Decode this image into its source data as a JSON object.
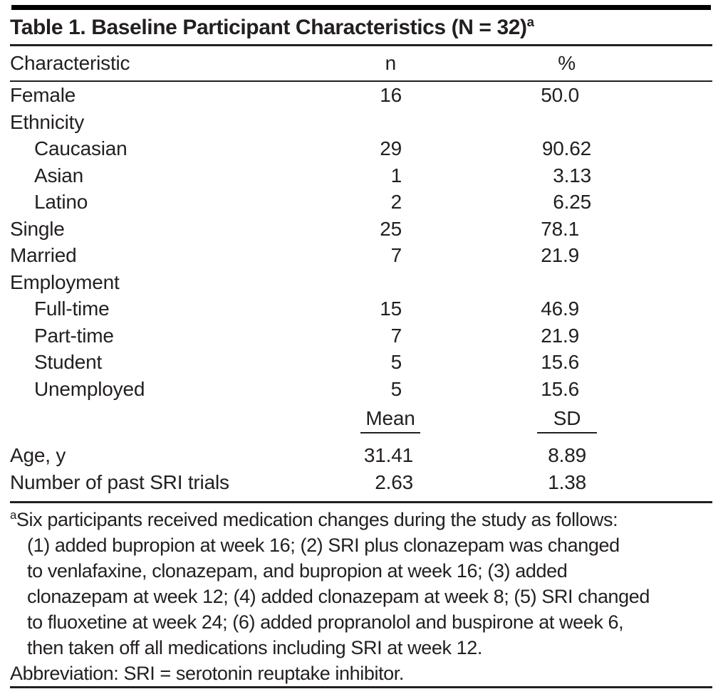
{
  "title": {
    "text": "Table 1. Baseline Participant Characteristics (N = 32)",
    "footnote_marker": "a"
  },
  "table": {
    "columns": [
      "Characteristic",
      "n",
      "%"
    ],
    "rows": [
      {
        "label": "Female",
        "n": "16",
        "pct": "50.0"
      },
      {
        "label": "Ethnicity",
        "n": "",
        "pct": ""
      },
      {
        "label": "Caucasian",
        "n": "29",
        "pct": "90.62"
      },
      {
        "label": "Asian",
        "n": "1",
        "pct": "3.13"
      },
      {
        "label": "Latino",
        "n": "2",
        "pct": "6.25"
      },
      {
        "label": "Single",
        "n": "25",
        "pct": "78.1"
      },
      {
        "label": "Married",
        "n": "7",
        "pct": "21.9"
      },
      {
        "label": "Employment",
        "n": "",
        "pct": ""
      },
      {
        "label": "Full-time",
        "n": "15",
        "pct": "46.9"
      },
      {
        "label": "Part-time",
        "n": "7",
        "pct": "21.9"
      },
      {
        "label": "Student",
        "n": "5",
        "pct": "15.6"
      },
      {
        "label": "Unemployed",
        "n": "5",
        "pct": "15.6"
      }
    ],
    "stats_columns": [
      "Mean",
      "SD"
    ],
    "stats_rows": [
      {
        "label": "Age, y",
        "mean": "31.41",
        "sd": "8.89"
      },
      {
        "label": "Number of past SRI trials",
        "mean": "2.63",
        "sd": "1.38"
      }
    ]
  },
  "footnote": {
    "marker": "a",
    "lines": [
      "Six participants received medication changes during the study as follows:",
      "(1) added bupropion at week 16; (2) SRI plus clonazepam was changed",
      "to venlafaxine, clonazepam, and bupropion at week 16; (3) added",
      "clonazepam at week 12; (4) added clonazepam at week 8; (5) SRI changed",
      "to fluoxetine at week 24; (6) added propranolol and buspirone at week 6,",
      "then taken off all medications including SRI at week 12."
    ],
    "abbreviation": "Abbreviation: SRI = serotonin reuptake inhibitor."
  },
  "colors": {
    "text": "#231f20",
    "rule": "#231f20",
    "top_bar": "#000000",
    "background": "#ffffff"
  }
}
